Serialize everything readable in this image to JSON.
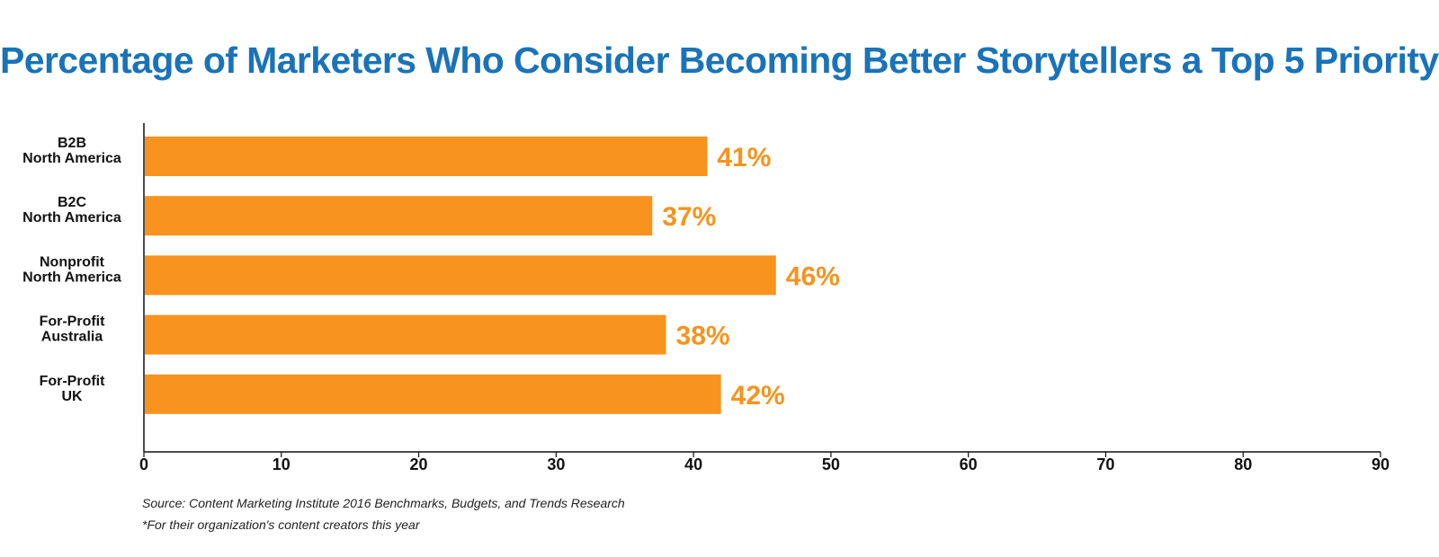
{
  "chart_data": {
    "type": "bar",
    "orientation": "horizontal",
    "title": "Percentage of Marketers Who Consider Becoming Better Storytellers a Top 5 Priority*",
    "categories": [
      [
        "B2B",
        "North America"
      ],
      [
        "B2C",
        "North America"
      ],
      [
        "Nonprofit",
        "North America"
      ],
      [
        "For-Profit",
        "Australia"
      ],
      [
        "For-Profit",
        "UK"
      ]
    ],
    "values": [
      41,
      37,
      46,
      38,
      42
    ],
    "data_labels": [
      "41%",
      "37%",
      "46%",
      "38%",
      "42%"
    ],
    "xlim": [
      0,
      90
    ],
    "xticks": [
      0,
      10,
      20,
      30,
      40,
      50,
      60,
      70,
      80,
      90
    ],
    "xlabel": "",
    "ylabel": "",
    "grid": false,
    "legend": "none"
  },
  "colors": {
    "title": "#1a73b8",
    "bar": "#f7931e",
    "axis": "#111111",
    "text": "#111111"
  },
  "notes": {
    "source": "Source: Content Marketing Institute 2016 Benchmarks, Budgets, and Trends Research",
    "footnote": "*For their organization's content creators this year"
  }
}
